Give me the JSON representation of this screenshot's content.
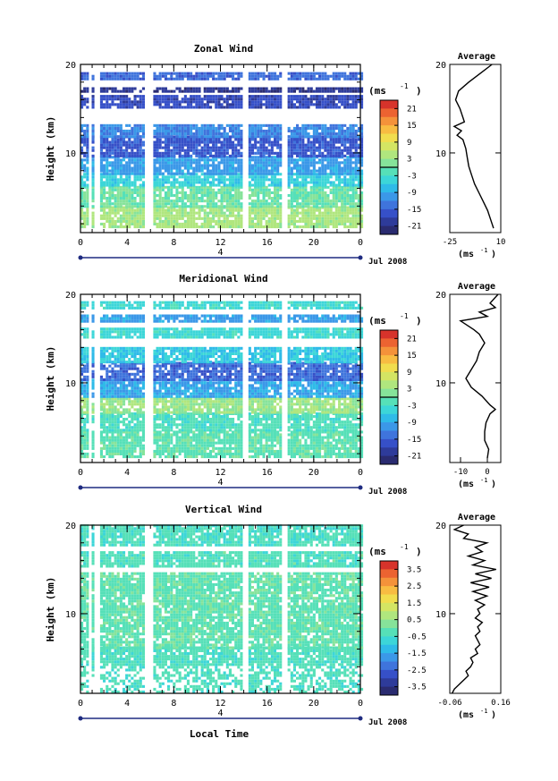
{
  "chart_data": [
    {
      "type": "heatmap",
      "title": "Zonal Wind",
      "ylabel": "Height (km)",
      "y_ticks": [
        "20",
        "10"
      ],
      "x_ticks": [
        "0",
        "4",
        "8",
        "12",
        "16",
        "20",
        "0"
      ],
      "xlim": [
        0,
        24
      ],
      "ylim": [
        1,
        20
      ],
      "date_label": "Jul 2008",
      "day_label": "4",
      "colorbar": {
        "unit_label": "(ms",
        "unit_exp": "-1",
        "ticks": [
          "21",
          "15",
          "9",
          "3",
          "-3",
          "-9",
          "-15",
          "-21"
        ],
        "range": [
          -24,
          24
        ],
        "zero_line": true
      },
      "field": {
        "rows": [
          {
            "h": [
              1.5,
              3.8
            ],
            "v": 4
          },
          {
            "h": [
              3.8,
              6.2
            ],
            "v": 0
          },
          {
            "h": [
              6.2,
              7.5
            ],
            "v": -5
          },
          {
            "h": [
              7.5,
              9.5
            ],
            "v": -10
          },
          {
            "h": [
              9.5,
              11.7
            ],
            "v": -16
          },
          {
            "h": [
              11.7,
              13.0
            ],
            "v": -12
          },
          {
            "h": [
              15.0,
              16.5
            ],
            "v": -17
          },
          {
            "h": [
              16.8,
              17.4
            ],
            "v": -20
          },
          {
            "h": [
              18.2,
              19.0
            ],
            "v": -14
          }
        ]
      },
      "average": {
        "title": "Average",
        "y_ticks": [
          "20",
          "10"
        ],
        "x_ticks": [
          "-25",
          "10"
        ],
        "xlim": [
          -25,
          10
        ],
        "unit_label": "(ms",
        "unit_exp": "-1",
        "profile": [
          [
            1.5,
            5
          ],
          [
            2.5,
            3
          ],
          [
            3.5,
            1
          ],
          [
            4.5,
            -2
          ],
          [
            5.5,
            -5
          ],
          [
            6.5,
            -8
          ],
          [
            7.5,
            -10
          ],
          [
            8.5,
            -12
          ],
          [
            9.5,
            -13
          ],
          [
            10.5,
            -14
          ],
          [
            11.5,
            -16
          ],
          [
            12.0,
            -20
          ],
          [
            12.5,
            -17
          ],
          [
            13.0,
            -22
          ],
          [
            13.5,
            -15
          ],
          [
            14.0,
            -16
          ],
          [
            15.0,
            -18
          ],
          [
            16.0,
            -21
          ],
          [
            17.0,
            -19
          ],
          [
            18.0,
            -12
          ],
          [
            19.0,
            -4
          ],
          [
            20.0,
            4
          ]
        ]
      }
    },
    {
      "type": "heatmap",
      "title": "Meridional Wind",
      "ylabel": "Height (km)",
      "y_ticks": [
        "20",
        "10"
      ],
      "x_ticks": [
        "0",
        "4",
        "8",
        "12",
        "16",
        "20",
        "0"
      ],
      "xlim": [
        0,
        24
      ],
      "ylim": [
        1,
        20
      ],
      "date_label": "Jul 2008",
      "day_label": "4",
      "colorbar": {
        "unit_label": "(ms",
        "unit_exp": "-1",
        "ticks": [
          "21",
          "15",
          "9",
          "3",
          "-3",
          "-9",
          "-15",
          "-21"
        ],
        "range": [
          -24,
          24
        ],
        "zero_line": true
      },
      "field": {
        "rows": [
          {
            "h": [
              1.5,
              4.5
            ],
            "v": -1
          },
          {
            "h": [
              4.5,
              6.5
            ],
            "v": -2
          },
          {
            "h": [
              6.5,
              8.3
            ],
            "v": 3
          },
          {
            "h": [
              8.3,
              10.2
            ],
            "v": -9
          },
          {
            "h": [
              10.2,
              12.2
            ],
            "v": -14
          },
          {
            "h": [
              12.2,
              14.0
            ],
            "v": -6
          },
          {
            "h": [
              15.0,
              16.2
            ],
            "v": -4
          },
          {
            "h": [
              16.8,
              17.5
            ],
            "v": -10
          },
          {
            "h": [
              18.3,
              19.2
            ],
            "v": -4
          }
        ]
      },
      "average": {
        "title": "Average",
        "y_ticks": [
          "20",
          "10"
        ],
        "x_ticks": [
          "-10",
          "0"
        ],
        "xlim": [
          -14,
          5
        ],
        "unit_label": "(ms",
        "unit_exp": "-1",
        "profile": [
          [
            1.5,
            0
          ],
          [
            2.5,
            0.5
          ],
          [
            3.5,
            -1
          ],
          [
            4.5,
            -1
          ],
          [
            5.5,
            -0.5
          ],
          [
            6.5,
            1
          ],
          [
            7.0,
            3
          ],
          [
            7.5,
            1
          ],
          [
            8.5,
            -2
          ],
          [
            9.5,
            -6
          ],
          [
            10.5,
            -8
          ],
          [
            11.5,
            -6
          ],
          [
            12.5,
            -4
          ],
          [
            13.5,
            -3
          ],
          [
            14.5,
            -1
          ],
          [
            15.5,
            -3
          ],
          [
            16.0,
            -5
          ],
          [
            17.0,
            -10
          ],
          [
            17.5,
            0
          ],
          [
            18.0,
            -3
          ],
          [
            18.5,
            3
          ],
          [
            19.0,
            1
          ],
          [
            20.0,
            4
          ]
        ]
      }
    },
    {
      "type": "heatmap",
      "title": "Vertical Wind",
      "ylabel": "Height (km)",
      "xlabel": "Local Time",
      "y_ticks": [
        "20",
        "10"
      ],
      "x_ticks": [
        "0",
        "4",
        "8",
        "12",
        "16",
        "20",
        "0"
      ],
      "xlim": [
        0,
        24
      ],
      "ylim": [
        1,
        20
      ],
      "date_label": "Jul 2008",
      "day_label": "4",
      "colorbar": {
        "unit_label": "(ms",
        "unit_exp": "-1",
        "ticks": [
          "3.5",
          "2.5",
          "1.5",
          "0.5",
          "-0.5",
          "-1.5",
          "-2.5",
          "-3.5"
        ],
        "range": [
          -4,
          4
        ],
        "zero_line": false
      },
      "field": {
        "rows": [
          {
            "h": [
              1.0,
              6.0
            ],
            "v": -0.35
          },
          {
            "h": [
              6.0,
              14.5
            ],
            "v": -0.15
          },
          {
            "h": [
              15.2,
              17.0
            ],
            "v": -0.3
          },
          {
            "h": [
              17.6,
              20.0
            ],
            "v": -0.4
          }
        ]
      },
      "average": {
        "title": "Average",
        "y_ticks": [
          "20",
          "10"
        ],
        "x_ticks": [
          "-0.06",
          "0.16"
        ],
        "xlim": [
          -0.06,
          0.16
        ],
        "unit_label": "(ms",
        "unit_exp": "-1",
        "profile": [
          [
            1.0,
            -0.05
          ],
          [
            1.5,
            -0.04
          ],
          [
            2.0,
            -0.02
          ],
          [
            2.5,
            0.0
          ],
          [
            3.0,
            0.02
          ],
          [
            3.5,
            0.01
          ],
          [
            4.0,
            0.03
          ],
          [
            4.5,
            0.04
          ],
          [
            5.0,
            0.03
          ],
          [
            5.5,
            0.06
          ],
          [
            6.0,
            0.05
          ],
          [
            6.5,
            0.07
          ],
          [
            7.0,
            0.06
          ],
          [
            7.5,
            0.05
          ],
          [
            8.0,
            0.07
          ],
          [
            8.5,
            0.06
          ],
          [
            9.0,
            0.08
          ],
          [
            9.5,
            0.05
          ],
          [
            10.0,
            0.07
          ],
          [
            10.5,
            0.06
          ],
          [
            11.0,
            0.09
          ],
          [
            11.5,
            0.05
          ],
          [
            12.0,
            0.1
          ],
          [
            12.5,
            0.04
          ],
          [
            13.0,
            0.11
          ],
          [
            13.5,
            0.03
          ],
          [
            14.0,
            0.12
          ],
          [
            14.5,
            0.05
          ],
          [
            15.0,
            0.14
          ],
          [
            15.5,
            0.04
          ],
          [
            16.0,
            0.09
          ],
          [
            16.5,
            0.02
          ],
          [
            17.0,
            0.08
          ],
          [
            17.5,
            0.05
          ],
          [
            18.0,
            0.1
          ],
          [
            18.5,
            0.0
          ],
          [
            19.0,
            0.02
          ],
          [
            19.5,
            -0.04
          ],
          [
            20.0,
            0.0
          ]
        ]
      }
    }
  ]
}
